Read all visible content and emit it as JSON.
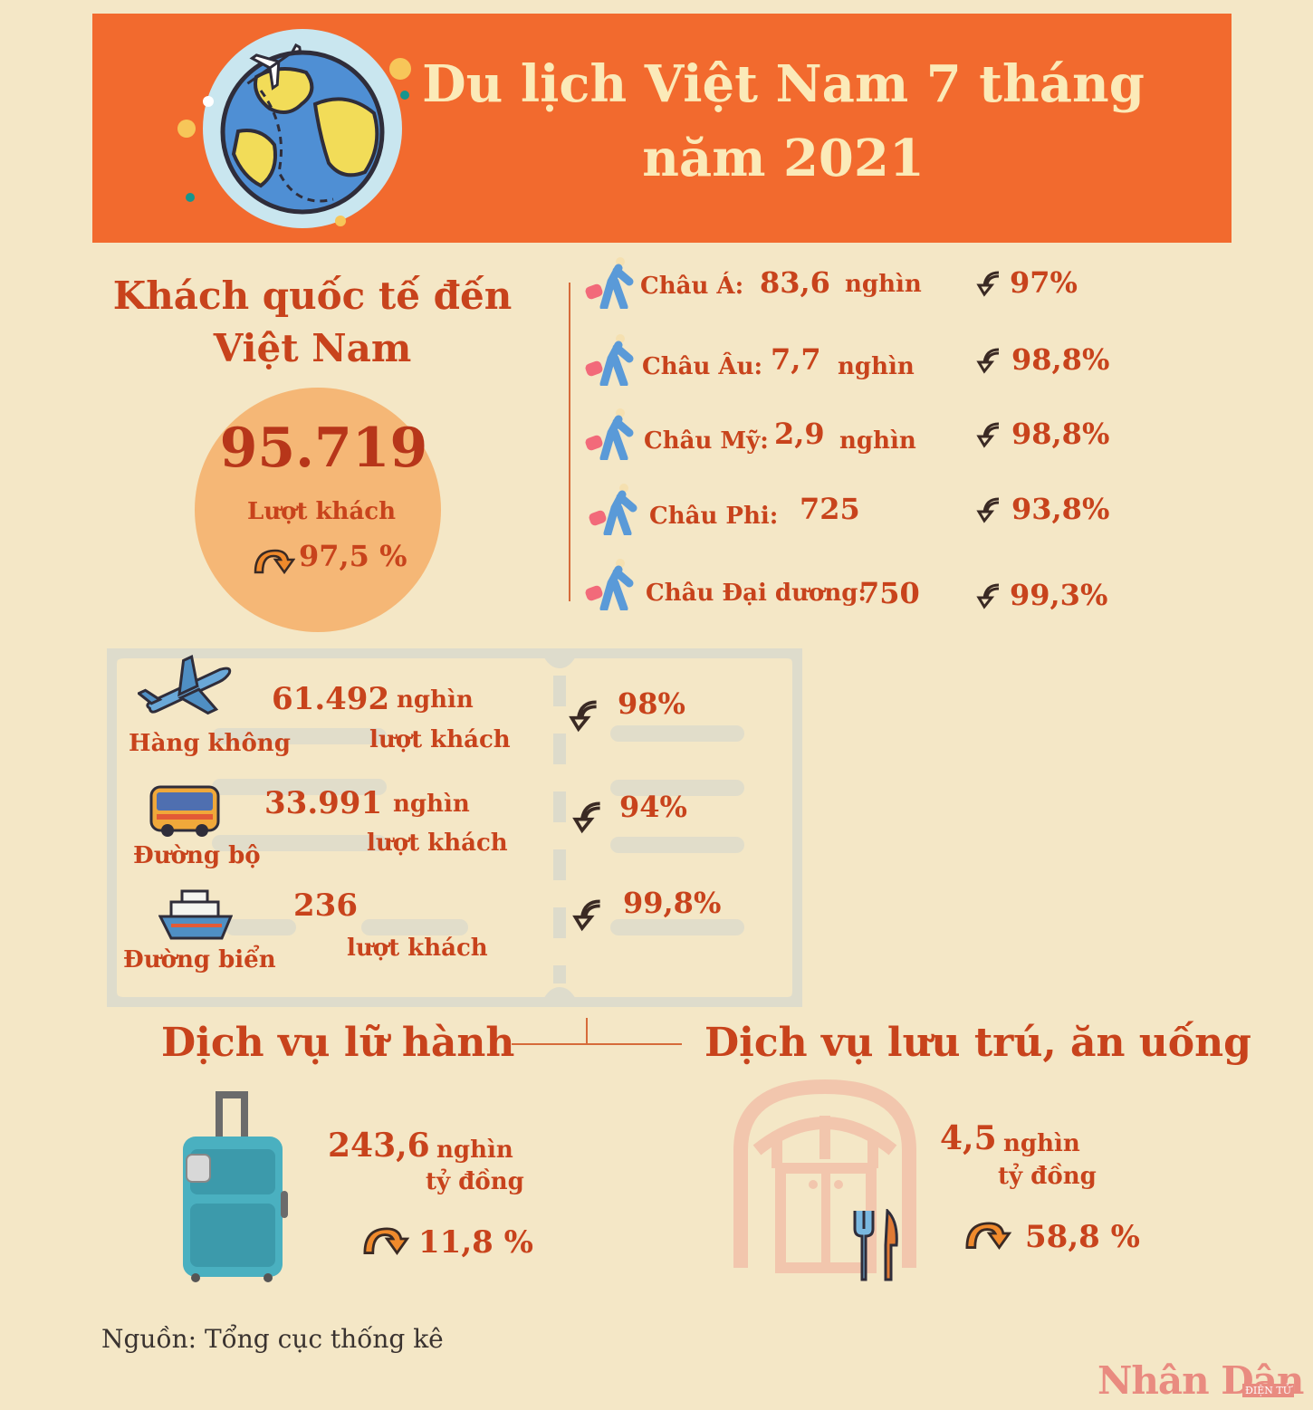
{
  "header": {
    "title_line1": "Du lịch Việt Nam 7 tháng",
    "title_line2": "năm 2021"
  },
  "international": {
    "title_line1": "Khách quốc tế đến",
    "title_line2": "Việt Nam",
    "total": "95.719",
    "total_label": "Lượt khách",
    "change": "97,5 %"
  },
  "continents": [
    {
      "name": "Châu Á:",
      "value": "83,6",
      "unit": "nghìn",
      "change": "97%"
    },
    {
      "name": "Châu Âu:",
      "value": "7,7",
      "unit": "nghìn",
      "change": "98,8%"
    },
    {
      "name": "Châu Mỹ:",
      "value": "2,9",
      "unit": "nghìn",
      "change": "98,8%"
    },
    {
      "name": "Châu Phi:",
      "value": "725",
      "unit": "",
      "change": "93,8%"
    },
    {
      "name": "Châu Đại dương:",
      "value": "750",
      "unit": "",
      "change": "99,3%"
    }
  ],
  "transport": [
    {
      "mode": "Hàng không",
      "value": "61.492",
      "unit": "nghìn",
      "sub": "lượt khách",
      "change": "98%"
    },
    {
      "mode": "Đường bộ",
      "value": "33.991",
      "unit": "nghìn",
      "sub": "lượt khách",
      "change": "94%"
    },
    {
      "mode": "Đường biển",
      "value": "236",
      "unit": "",
      "sub": "lượt khách",
      "change": "99,8%"
    }
  ],
  "travel_service": {
    "title": "Dịch vụ lữ hành",
    "value": "243,6",
    "unit": "nghìn",
    "unit2": "tỷ đồng",
    "change": "11,8 %"
  },
  "lodging_service": {
    "title": "Dịch vụ lưu trú, ăn uống",
    "value": "4,5",
    "unit": "nghìn",
    "unit2": "tỷ đồng",
    "change": "58,8 %"
  },
  "source": "Nguồn: Tổng cục thống kê",
  "logo": {
    "name": "Nhân Dân",
    "sub": "ĐIỆN TỬ"
  },
  "colors": {
    "banner": "#f26a2e",
    "title_text": "#fbeab8",
    "accent": "#c8431c",
    "background": "#f4e7c6",
    "circle": "#f5b776",
    "suitcase": "#4ab0c0"
  },
  "icons": [
    "globe-icon",
    "airplane-icon",
    "walker-icon",
    "down-arrow-icon",
    "up-arrow-icon",
    "bus-icon",
    "ship-icon",
    "suitcase-icon",
    "restaurant-icon",
    "fork-knife-icon"
  ]
}
